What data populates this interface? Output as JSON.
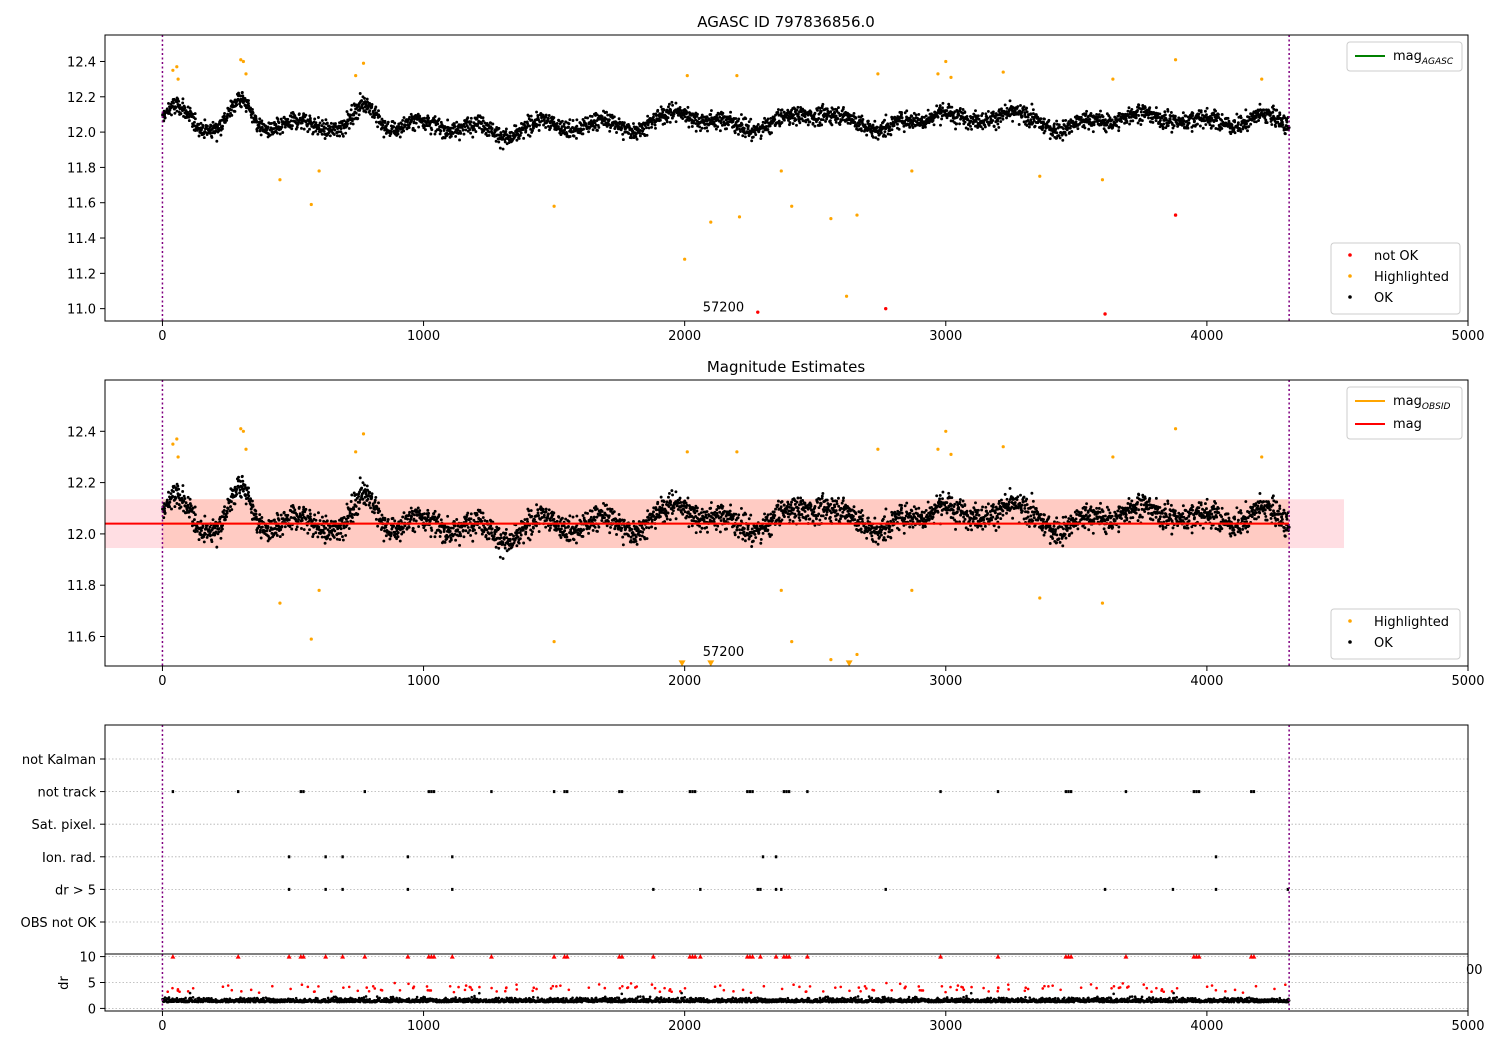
{
  "colors": {
    "ok": "#000000",
    "highlighted": "#ffa500",
    "not_ok": "#ff0000",
    "mag_agasc": "#008000",
    "mag_obsid": "#ffa500",
    "mag": "#ff0000",
    "band": "#ffb6c1",
    "band_obsid": "#ffa07a",
    "vline": "#800080",
    "flags": "#000000",
    "dr_high": "#ff0000",
    "dr_low": "#000000"
  },
  "chart_data": [
    {
      "type": "scatter",
      "title": "AGASC ID 797836856.0",
      "xlim": [
        -220,
        5000
      ],
      "ylim": [
        10.93,
        12.55
      ],
      "xticks": [
        "0",
        "1000",
        "2000",
        "3000",
        "4000",
        "5000"
      ],
      "yticks": [
        "11.0",
        "11.2",
        "11.4",
        "11.6",
        "11.8",
        "12.0",
        "12.2",
        "12.4"
      ],
      "vlines": [
        0,
        4315
      ],
      "annotation": {
        "text": "57200",
        "x": 2100,
        "y": 11.0
      },
      "legend_upper": {
        "position": "upper-right",
        "entries": [
          {
            "label": "mag",
            "sub": "AGASC",
            "style": "line",
            "color_key": "mag_agasc"
          }
        ]
      },
      "legend_lower": {
        "position": "lower-right",
        "entries": [
          {
            "label": "not OK",
            "color_key": "not_ok"
          },
          {
            "label": "Highlighted",
            "color_key": "highlighted"
          },
          {
            "label": "OK",
            "color_key": "ok"
          }
        ]
      },
      "series": [
        {
          "name": "not OK",
          "color_key": "not_ok",
          "x": [
            2280,
            2770,
            3610,
            3880
          ],
          "y": [
            10.98,
            11.0,
            10.97,
            11.53
          ]
        },
        {
          "name": "Highlighted",
          "color_key": "highlighted",
          "x": [
            40,
            55,
            60,
            300,
            310,
            320,
            450,
            570,
            600,
            740,
            770,
            1500,
            2000,
            2010,
            2100,
            2200,
            2210,
            2370,
            2410,
            2560,
            2620,
            2660,
            2740,
            2870,
            2970,
            3000,
            3020,
            3220,
            3360,
            3600,
            3640,
            3880,
            4210
          ],
          "y": [
            12.35,
            12.37,
            12.3,
            12.41,
            12.4,
            12.33,
            11.73,
            11.59,
            11.78,
            12.32,
            12.39,
            11.58,
            11.28,
            12.32,
            11.49,
            12.32,
            11.52,
            11.78,
            11.58,
            11.51,
            11.07,
            11.53,
            12.33,
            11.78,
            12.33,
            12.4,
            12.31,
            12.34,
            11.75,
            11.73,
            12.3,
            12.41,
            12.3
          ]
        },
        {
          "name": "OK",
          "color_key": "ok",
          "generated": true,
          "x_range": [
            0,
            4315
          ],
          "n": 3400,
          "model": {
            "base": 12.04,
            "noise": 0.065,
            "bumps": [
              {
                "x": 50,
                "w": 60,
                "a": 0.08
              },
              {
                "x": 300,
                "w": 50,
                "a": 0.12
              },
              {
                "x": 780,
                "w": 50,
                "a": 0.1
              },
              {
                "x": 1300,
                "w": 80,
                "a": -0.05
              },
              {
                "x": 2000,
                "w": 80,
                "a": 0.08
              },
              {
                "x": 2500,
                "w": 100,
                "a": 0.08
              },
              {
                "x": 2980,
                "w": 60,
                "a": 0.1
              },
              {
                "x": 3220,
                "w": 80,
                "a": 0.08
              },
              {
                "x": 3700,
                "w": 80,
                "a": 0.07
              },
              {
                "x": 3900,
                "w": 80,
                "a": 0.05
              },
              {
                "x": 4180,
                "w": 80,
                "a": 0.05
              }
            ]
          }
        }
      ]
    },
    {
      "type": "scatter",
      "title": "Magnitude Estimates",
      "xlim": [
        -220,
        5000
      ],
      "ylim": [
        11.485,
        12.6
      ],
      "xticks": [
        "0",
        "1000",
        "2000",
        "3000",
        "4000",
        "5000"
      ],
      "yticks": [
        "11.6",
        "11.8",
        "12.0",
        "12.2",
        "12.4"
      ],
      "vlines": [
        0,
        4315
      ],
      "annotation": {
        "text": "57200",
        "x": 2100,
        "y": 11.52
      },
      "mag": {
        "value": 12.04,
        "x_range": [
          -220,
          4315
        ]
      },
      "band": {
        "low": 11.945,
        "high": 12.135,
        "x_range": [
          -220,
          4525
        ]
      },
      "band_obsid": {
        "low": 11.945,
        "high": 12.135,
        "x_range": [
          0,
          4315
        ]
      },
      "mag_obsid": {
        "value": 12.04,
        "x_range": [
          0,
          4315
        ]
      },
      "legend_upper": {
        "position": "upper-right",
        "entries": [
          {
            "label": "mag",
            "sub": "OBSID",
            "style": "line",
            "color_key": "mag_obsid"
          },
          {
            "label": "mag",
            "sub": "",
            "style": "line",
            "color_key": "mag"
          }
        ]
      },
      "legend_lower": {
        "position": "lower-right",
        "entries": [
          {
            "label": "Highlighted",
            "color_key": "highlighted"
          },
          {
            "label": "OK",
            "color_key": "ok"
          }
        ]
      },
      "series": [
        {
          "name": "Highlighted",
          "color_key": "highlighted",
          "x": [
            40,
            55,
            60,
            300,
            310,
            320,
            450,
            570,
            600,
            740,
            770,
            1500,
            2010,
            2200,
            2370,
            2410,
            2560,
            2660,
            2740,
            2870,
            2970,
            3000,
            3020,
            3220,
            3360,
            3600,
            3640,
            3880,
            4210
          ],
          "y": [
            12.35,
            12.37,
            12.3,
            12.41,
            12.4,
            12.33,
            11.73,
            11.59,
            11.78,
            12.32,
            12.39,
            11.58,
            12.32,
            12.32,
            11.78,
            11.58,
            11.51,
            11.53,
            12.33,
            11.78,
            12.33,
            12.4,
            12.31,
            12.34,
            11.75,
            11.73,
            12.3,
            12.41,
            12.3
          ]
        },
        {
          "name": "clipped",
          "color_key": "highlighted",
          "marker": "triangle",
          "x": [
            1990,
            2100,
            2630
          ],
          "y": [
            11.495,
            11.495,
            11.495
          ]
        },
        {
          "name": "OK",
          "color_key": "ok",
          "generated": true,
          "same_as_panel": 0
        }
      ]
    },
    {
      "type": "scatter",
      "title": "",
      "xlim": [
        -220,
        5000
      ],
      "categories": [
        "not Kalman",
        "not track",
        "Sat. pixel.",
        "Ion. rad.",
        "dr > 5",
        "OBS not OK"
      ],
      "vlines": [
        0,
        4315
      ],
      "flags": {
        "not Kalman": [],
        "not track": [
          40,
          290,
          530,
          540,
          775,
          1020,
          1030,
          1040,
          1260,
          1500,
          1540,
          1550,
          1750,
          1760,
          2020,
          2030,
          2040,
          2240,
          2250,
          2260,
          2380,
          2390,
          2400,
          2470,
          2980,
          3200,
          3460,
          3470,
          3480,
          3690,
          3950,
          3960,
          3970,
          4170,
          4180
        ],
        "Sat. pixel.": [],
        "Ion. rad.": [
          485,
          625,
          690,
          940,
          1110,
          2300,
          2350,
          4035
        ],
        "dr > 5": [
          485,
          625,
          690,
          940,
          1110,
          1880,
          2060,
          2280,
          2290,
          2350,
          2370,
          2770,
          3610,
          3870,
          4035,
          4310
        ],
        "OBS not OK": []
      }
    },
    {
      "type": "scatter",
      "title": "",
      "ylabel": "dr",
      "xlim": [
        -220,
        5000
      ],
      "ylim": [
        -0.5,
        10.5
      ],
      "xticks": [
        "0",
        "1000",
        "2000",
        "3000",
        "4000",
        "5000"
      ],
      "yticks": [
        "0",
        "5",
        "10"
      ],
      "vlines": [
        0,
        4315
      ],
      "stray_tick": "00",
      "clip_markers": {
        "color_key": "dr_high",
        "x": [
          40,
          290,
          530,
          540,
          775,
          1020,
          1030,
          1040,
          1260,
          1500,
          1540,
          1550,
          1750,
          1760,
          2020,
          2030,
          2040,
          2240,
          2250,
          2260,
          2380,
          2390,
          2400,
          2470,
          2980,
          3200,
          3460,
          3470,
          3480,
          3690,
          3950,
          3960,
          3970,
          4170,
          4180,
          485,
          625,
          690,
          940,
          1110,
          1880,
          2060,
          2290,
          2350
        ],
        "y": 10
      },
      "generated": true,
      "n": 3400,
      "threshold": 3
    }
  ]
}
